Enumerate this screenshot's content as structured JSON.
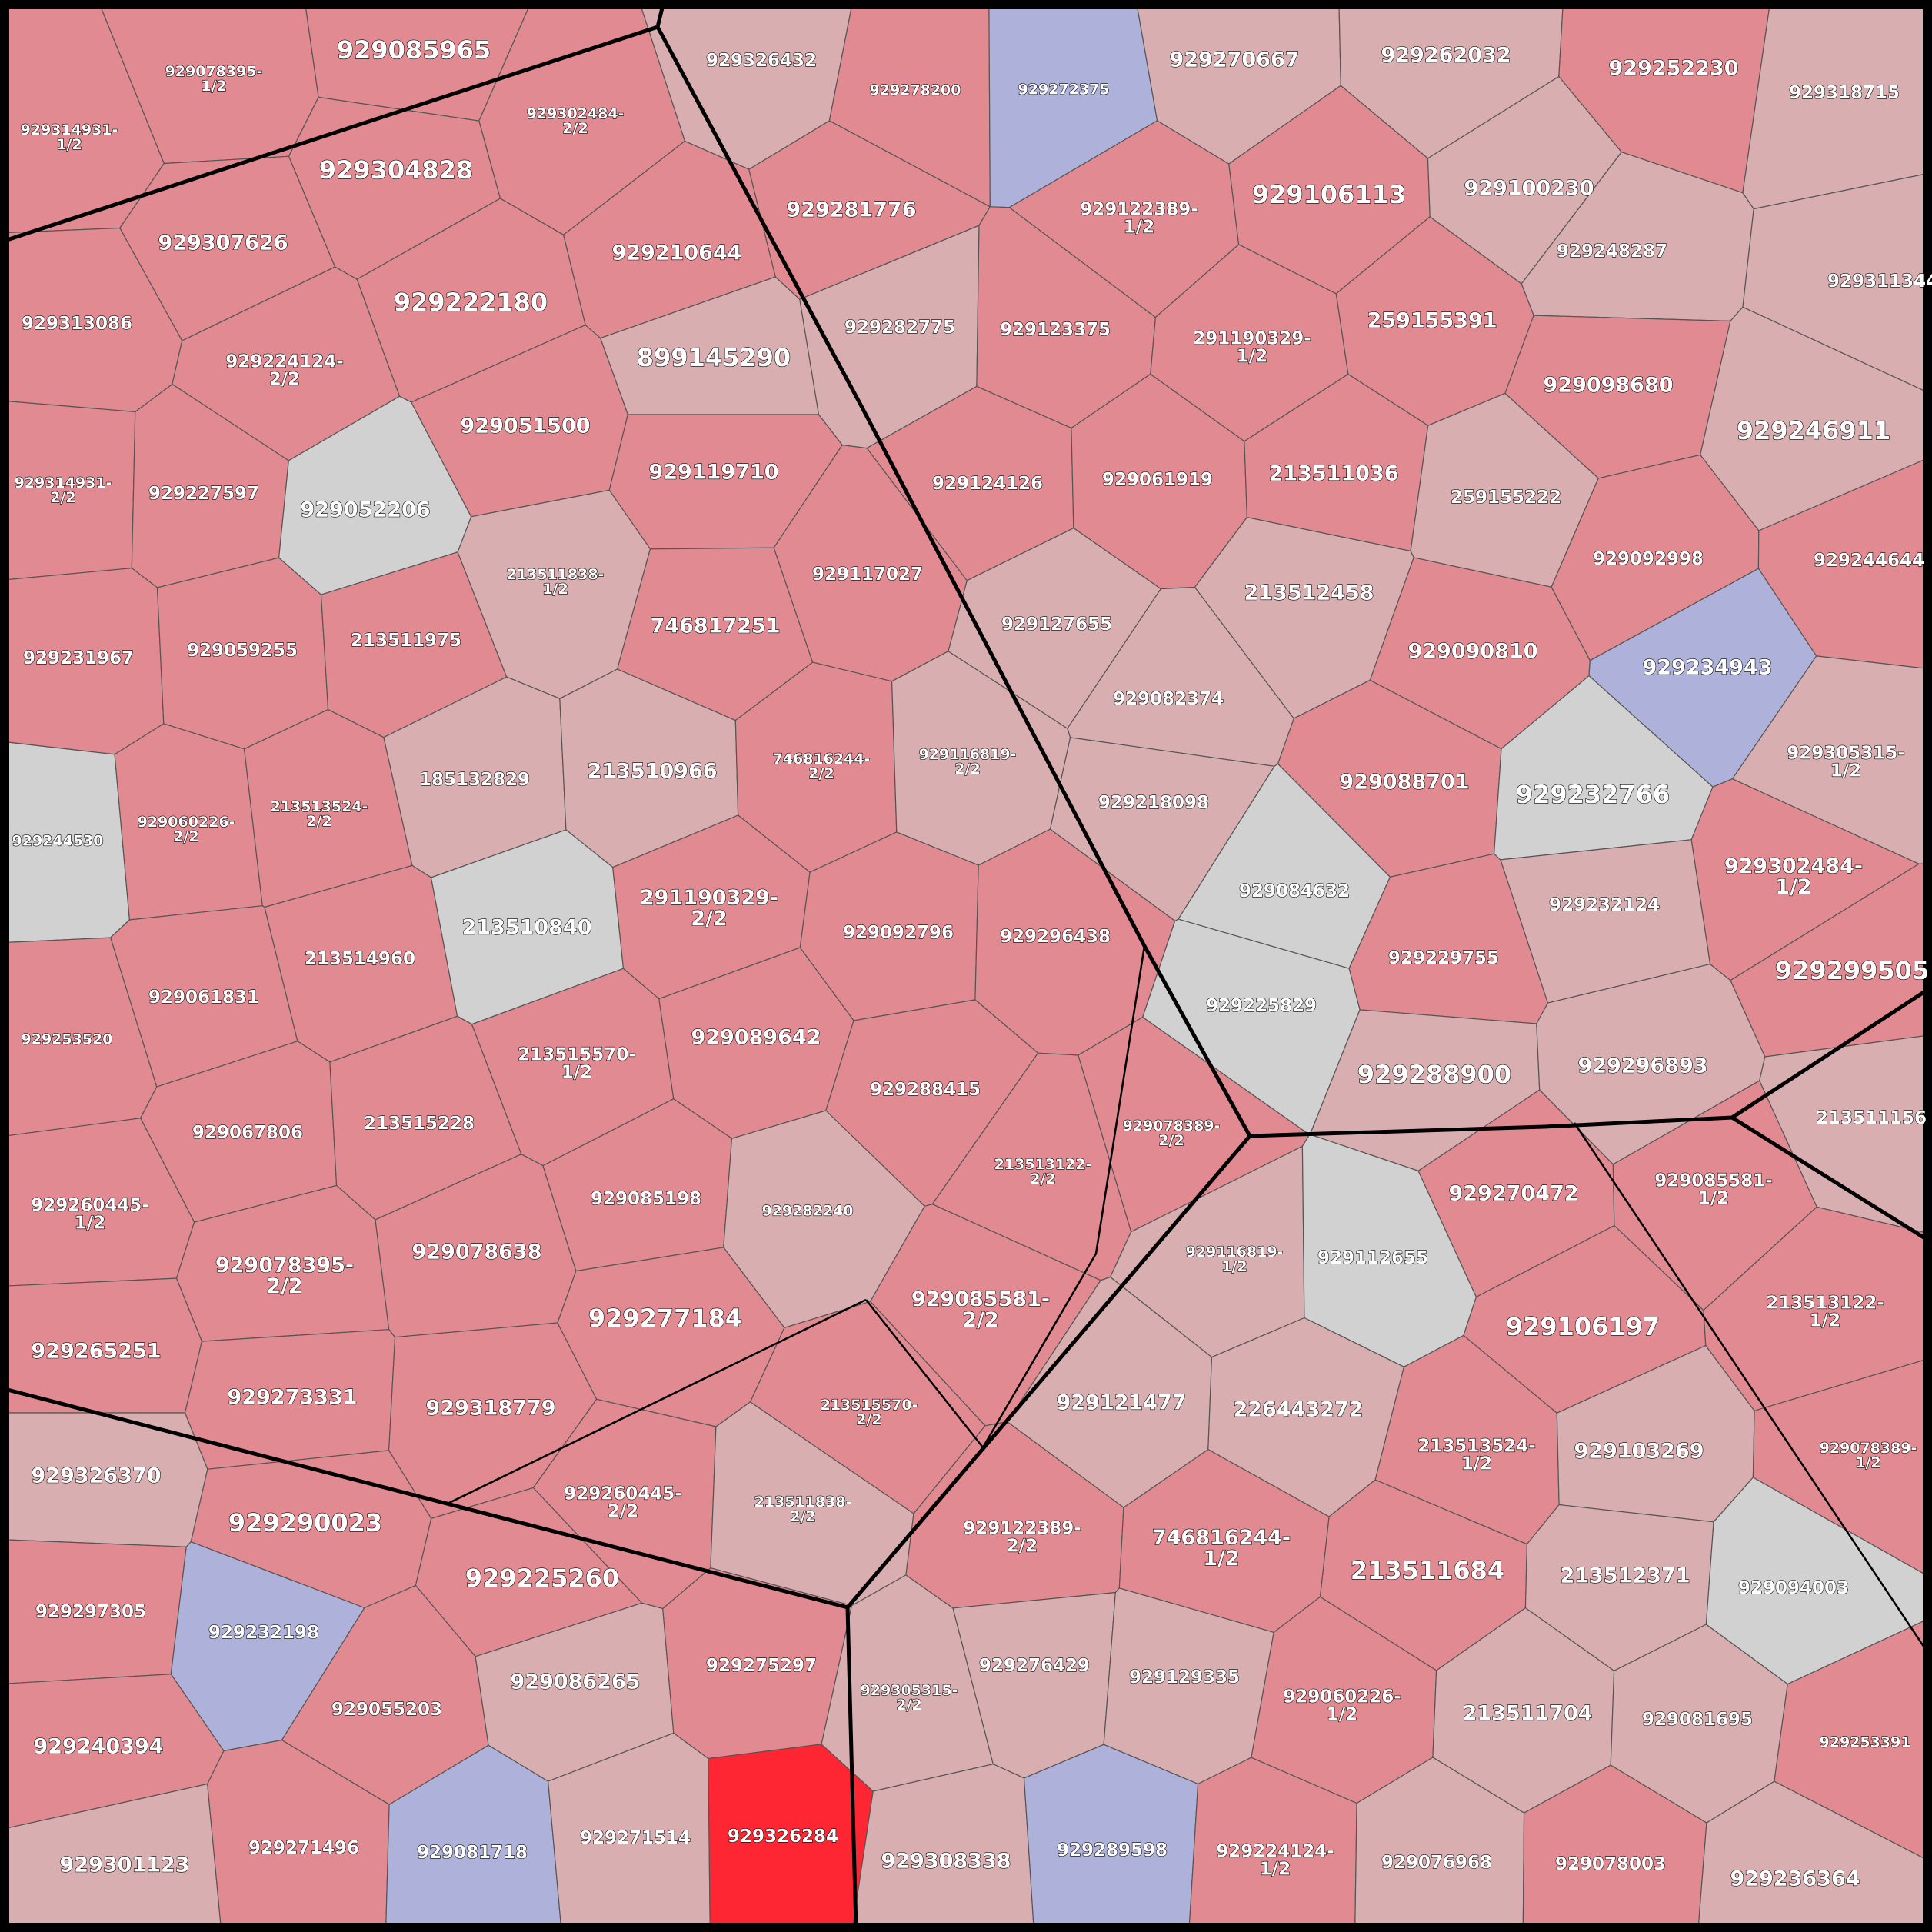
{
  "map": {
    "colors": {
      "strong": "#e28a91",
      "light": "#d9aeb1",
      "gray": "#d1d1d1",
      "blue": "#aeb1d9",
      "highlight": "#fe2633"
    },
    "regions": [
      {
        "id": "r1",
        "label": [
          "929314931-",
          "1/2"
        ],
        "shade": "strong"
      },
      {
        "id": "r2",
        "label": [
          "929078395-",
          "1/2"
        ],
        "shade": "strong"
      },
      {
        "id": "r3",
        "label": [
          "929085965"
        ],
        "shade": "strong"
      },
      {
        "id": "r4",
        "label": [
          "929302484-",
          "2/2"
        ],
        "shade": "strong"
      },
      {
        "id": "r5",
        "label": [
          "929304828"
        ],
        "shade": "strong"
      },
      {
        "id": "r6",
        "label": [
          "929307626"
        ],
        "shade": "strong"
      },
      {
        "id": "r7",
        "label": [
          "929210644"
        ],
        "shade": "strong"
      },
      {
        "id": "r8",
        "label": [
          "929313086"
        ],
        "shade": "strong"
      },
      {
        "id": "r9",
        "label": [
          "929222180"
        ],
        "shade": "strong"
      },
      {
        "id": "r10",
        "label": [
          "929224124-",
          "2/2"
        ],
        "shade": "strong"
      },
      {
        "id": "r11",
        "label": [
          "899145290"
        ],
        "shade": "light"
      },
      {
        "id": "r12",
        "label": [
          "929314931-",
          "2/2"
        ],
        "shade": "strong"
      },
      {
        "id": "r13",
        "label": [
          "929227597"
        ],
        "shade": "strong"
      },
      {
        "id": "r14",
        "label": [
          "929052206"
        ],
        "shade": "gray"
      },
      {
        "id": "r15",
        "label": [
          "929051500"
        ],
        "shade": "strong"
      },
      {
        "id": "r16",
        "label": [
          "929119710"
        ],
        "shade": "strong"
      },
      {
        "id": "r17",
        "label": [
          "929231967"
        ],
        "shade": "strong"
      },
      {
        "id": "r18",
        "label": [
          "929059255"
        ],
        "shade": "strong"
      },
      {
        "id": "r19",
        "label": [
          "213511975"
        ],
        "shade": "strong"
      },
      {
        "id": "r20",
        "label": [
          "213511838-",
          "1/2"
        ],
        "shade": "light"
      },
      {
        "id": "r21",
        "label": [
          "746817251"
        ],
        "shade": "strong"
      },
      {
        "id": "r22",
        "label": [
          "929117027"
        ],
        "shade": "strong"
      },
      {
        "id": "r23",
        "label": [
          "929244530"
        ],
        "shade": "gray"
      },
      {
        "id": "r24",
        "label": [
          "929060226-",
          "2/2"
        ],
        "shade": "strong"
      },
      {
        "id": "r25",
        "label": [
          "213513524-",
          "2/2"
        ],
        "shade": "strong"
      },
      {
        "id": "r26",
        "label": [
          "185132829"
        ],
        "shade": "light"
      },
      {
        "id": "r27",
        "label": [
          "213510966"
        ],
        "shade": "light"
      },
      {
        "id": "r28",
        "label": [
          "746816244-",
          "2/2"
        ],
        "shade": "strong"
      },
      {
        "id": "r29",
        "label": [
          "929116819-",
          "2/2"
        ],
        "shade": "light"
      },
      {
        "id": "r30",
        "label": [
          "929061831"
        ],
        "shade": "strong"
      },
      {
        "id": "r31",
        "label": [
          "213514960"
        ],
        "shade": "strong"
      },
      {
        "id": "r32",
        "label": [
          "213510840"
        ],
        "shade": "gray"
      },
      {
        "id": "r33",
        "label": [
          "291190329-",
          "2/2"
        ],
        "shade": "strong"
      },
      {
        "id": "r34",
        "label": [
          "929092796"
        ],
        "shade": "strong"
      },
      {
        "id": "r35",
        "label": [
          "929296438"
        ],
        "shade": "strong"
      },
      {
        "id": "r36",
        "label": [
          "929253520"
        ],
        "shade": "strong"
      },
      {
        "id": "r37",
        "label": [
          "929067806"
        ],
        "shade": "strong"
      },
      {
        "id": "r38",
        "label": [
          "213515228"
        ],
        "shade": "strong"
      },
      {
        "id": "r39",
        "label": [
          "213515570-",
          "1/2"
        ],
        "shade": "strong"
      },
      {
        "id": "r40",
        "label": [
          "929089642"
        ],
        "shade": "strong"
      },
      {
        "id": "r41",
        "label": [
          "929288415"
        ],
        "shade": "strong"
      },
      {
        "id": "r42",
        "label": [
          "929260445-",
          "1/2"
        ],
        "shade": "strong"
      },
      {
        "id": "r43",
        "label": [
          "929078395-",
          "2/2"
        ],
        "shade": "strong"
      },
      {
        "id": "r44",
        "label": [
          "929078638"
        ],
        "shade": "strong"
      },
      {
        "id": "r45",
        "label": [
          "929085198"
        ],
        "shade": "strong"
      },
      {
        "id": "r46",
        "label": [
          "929282240"
        ],
        "shade": "light"
      },
      {
        "id": "r47",
        "label": [
          "929265251"
        ],
        "shade": "strong"
      },
      {
        "id": "r48",
        "label": [
          "929273331"
        ],
        "shade": "strong"
      },
      {
        "id": "r49",
        "label": [
          "929318779"
        ],
        "shade": "strong"
      },
      {
        "id": "r50",
        "label": [
          "929277184"
        ],
        "shade": "strong"
      },
      {
        "id": "r51",
        "label": [
          "929326432"
        ],
        "shade": "light"
      },
      {
        "id": "r52",
        "label": [
          "929278200"
        ],
        "shade": "strong"
      },
      {
        "id": "r53",
        "label": [
          "929272375"
        ],
        "shade": "blue"
      },
      {
        "id": "r54",
        "label": [
          "929281776"
        ],
        "shade": "strong"
      },
      {
        "id": "r55",
        "label": [
          "929282775"
        ],
        "shade": "light"
      },
      {
        "id": "r56",
        "label": [
          "929123375"
        ],
        "shade": "strong"
      },
      {
        "id": "r57",
        "label": [
          "929122389-",
          "1/2"
        ],
        "shade": "strong"
      },
      {
        "id": "r58",
        "label": [
          "929124126"
        ],
        "shade": "strong"
      },
      {
        "id": "r59",
        "label": [
          "929061919"
        ],
        "shade": "strong"
      },
      {
        "id": "r60",
        "label": [
          "929127655"
        ],
        "shade": "light"
      },
      {
        "id": "r61",
        "label": [
          "929082374"
        ],
        "shade": "light"
      },
      {
        "id": "r62",
        "label": [
          "929218098"
        ],
        "shade": "light"
      },
      {
        "id": "r63",
        "label": [
          "929270667"
        ],
        "shade": "light"
      },
      {
        "id": "r64",
        "label": [
          "929262032"
        ],
        "shade": "light"
      },
      {
        "id": "r65",
        "label": [
          "929252230"
        ],
        "shade": "strong"
      },
      {
        "id": "r66",
        "label": [
          "929318715"
        ],
        "shade": "light"
      },
      {
        "id": "r67",
        "label": [
          "929106113"
        ],
        "shade": "strong"
      },
      {
        "id": "r68",
        "label": [
          "929100230"
        ],
        "shade": "light"
      },
      {
        "id": "r69",
        "label": [
          "929248287"
        ],
        "shade": "light"
      },
      {
        "id": "r70",
        "label": [
          "929311344"
        ],
        "shade": "light"
      },
      {
        "id": "r71",
        "label": [
          "291190329-",
          "1/2"
        ],
        "shade": "strong"
      },
      {
        "id": "r72",
        "label": [
          "259155391"
        ],
        "shade": "strong"
      },
      {
        "id": "r73",
        "label": [
          "929098680"
        ],
        "shade": "strong"
      },
      {
        "id": "r74",
        "label": [
          "929246911"
        ],
        "shade": "light"
      },
      {
        "id": "r75",
        "label": [
          "213511036"
        ],
        "shade": "strong"
      },
      {
        "id": "r76",
        "label": [
          "259155222"
        ],
        "shade": "light"
      },
      {
        "id": "r77",
        "label": [
          "213512458"
        ],
        "shade": "light"
      },
      {
        "id": "r78",
        "label": [
          "929092998"
        ],
        "shade": "strong"
      },
      {
        "id": "r79",
        "label": [
          "929244644"
        ],
        "shade": "strong"
      },
      {
        "id": "r80",
        "label": [
          "929090810"
        ],
        "shade": "strong"
      },
      {
        "id": "r81",
        "label": [
          "929234943"
        ],
        "shade": "blue"
      },
      {
        "id": "r82",
        "label": [
          "929305315-",
          "1/2"
        ],
        "shade": "light"
      },
      {
        "id": "r83",
        "label": [
          "929088701"
        ],
        "shade": "strong"
      },
      {
        "id": "r84",
        "label": [
          "929232766"
        ],
        "shade": "gray"
      },
      {
        "id": "r85",
        "label": [
          "929084632"
        ],
        "shade": "gray"
      },
      {
        "id": "r86",
        "label": [
          "929302484-",
          "1/2"
        ],
        "shade": "strong"
      },
      {
        "id": "r87",
        "label": [
          "929232124"
        ],
        "shade": "light"
      },
      {
        "id": "r88",
        "label": [
          "929229755"
        ],
        "shade": "strong"
      },
      {
        "id": "r89",
        "label": [
          "929225829"
        ],
        "shade": "gray"
      },
      {
        "id": "r90",
        "label": [
          "929299505"
        ],
        "shade": "strong"
      },
      {
        "id": "r91",
        "label": [
          "929288900"
        ],
        "shade": "light"
      },
      {
        "id": "r92",
        "label": [
          "929296893"
        ],
        "shade": "light"
      },
      {
        "id": "r93",
        "label": [
          "213511156"
        ],
        "shade": "light"
      },
      {
        "id": "r94",
        "label": [
          "929078389-",
          "2/2"
        ],
        "shade": "strong"
      },
      {
        "id": "r95",
        "label": [
          "213513122-",
          "2/2"
        ],
        "shade": "strong"
      },
      {
        "id": "r96",
        "label": [
          "929085581-",
          "2/2"
        ],
        "shade": "strong"
      },
      {
        "id": "r97",
        "label": [
          "213515570-",
          "2/2"
        ],
        "shade": "strong"
      },
      {
        "id": "r98",
        "label": [
          "929260445-",
          "2/2"
        ],
        "shade": "strong"
      },
      {
        "id": "r99",
        "label": [
          "213511838-",
          "2/2"
        ],
        "shade": "light"
      },
      {
        "id": "r100",
        "label": [
          "929116819-",
          "1/2"
        ],
        "shade": "light"
      },
      {
        "id": "r101",
        "label": [
          "929112655"
        ],
        "shade": "gray"
      },
      {
        "id": "r102",
        "label": [
          "929270472"
        ],
        "shade": "strong"
      },
      {
        "id": "r103",
        "label": [
          "929085581-",
          "1/2"
        ],
        "shade": "strong"
      },
      {
        "id": "r104",
        "label": [
          "213513122-",
          "1/2"
        ],
        "shade": "strong"
      },
      {
        "id": "r105",
        "label": [
          "929106197"
        ],
        "shade": "strong"
      },
      {
        "id": "r106",
        "label": [
          "929121477"
        ],
        "shade": "light"
      },
      {
        "id": "r107",
        "label": [
          "226443272"
        ],
        "shade": "light"
      },
      {
        "id": "r108",
        "label": [
          "213513524-",
          "1/2"
        ],
        "shade": "strong"
      },
      {
        "id": "r109",
        "label": [
          "929103269"
        ],
        "shade": "light"
      },
      {
        "id": "r110",
        "label": [
          "929078389-",
          "1/2"
        ],
        "shade": "strong"
      },
      {
        "id": "r111",
        "label": [
          "929122389-",
          "2/2"
        ],
        "shade": "strong"
      },
      {
        "id": "r112",
        "label": [
          "746816244-",
          "1/2"
        ],
        "shade": "strong"
      },
      {
        "id": "r113",
        "label": [
          "213511684"
        ],
        "shade": "strong"
      },
      {
        "id": "r114",
        "label": [
          "213512371"
        ],
        "shade": "light"
      },
      {
        "id": "r115",
        "label": [
          "929094003"
        ],
        "shade": "gray"
      },
      {
        "id": "r116",
        "label": [
          "929326370"
        ],
        "shade": "light"
      },
      {
        "id": "r117",
        "label": [
          "929290023"
        ],
        "shade": "strong"
      },
      {
        "id": "r118",
        "label": [
          "929225260"
        ],
        "shade": "strong"
      },
      {
        "id": "r119",
        "label": [
          "929297305"
        ],
        "shade": "strong"
      },
      {
        "id": "r120",
        "label": [
          "929232198"
        ],
        "shade": "blue"
      },
      {
        "id": "r121",
        "label": [
          "929055203"
        ],
        "shade": "strong"
      },
      {
        "id": "r122",
        "label": [
          "929086265"
        ],
        "shade": "light"
      },
      {
        "id": "r123",
        "label": [
          "929275297"
        ],
        "shade": "strong"
      },
      {
        "id": "r124",
        "label": [
          "929240394"
        ],
        "shade": "strong"
      },
      {
        "id": "r125",
        "label": [
          "929301123"
        ],
        "shade": "light"
      },
      {
        "id": "r126",
        "label": [
          "929271496"
        ],
        "shade": "strong"
      },
      {
        "id": "r127",
        "label": [
          "929081718"
        ],
        "shade": "blue"
      },
      {
        "id": "r128",
        "label": [
          "929271514"
        ],
        "shade": "light"
      },
      {
        "id": "r129",
        "label": [
          "929326284"
        ],
        "shade": "highlight"
      },
      {
        "id": "r130",
        "label": [
          "929305315-",
          "2/2"
        ],
        "shade": "light"
      },
      {
        "id": "r131",
        "label": [
          "929276429"
        ],
        "shade": "light"
      },
      {
        "id": "r132",
        "label": [
          "929129335"
        ],
        "shade": "light"
      },
      {
        "id": "r133",
        "label": [
          "929060226-",
          "1/2"
        ],
        "shade": "strong"
      },
      {
        "id": "r134",
        "label": [
          "213511704"
        ],
        "shade": "light"
      },
      {
        "id": "r135",
        "label": [
          "929081695"
        ],
        "shade": "light"
      },
      {
        "id": "r136",
        "label": [
          "929253391"
        ],
        "shade": "strong"
      },
      {
        "id": "r137",
        "label": [
          "929308338"
        ],
        "shade": "light"
      },
      {
        "id": "r138",
        "label": [
          "929289598"
        ],
        "shade": "blue"
      },
      {
        "id": "r139",
        "label": [
          "929224124-",
          "1/2"
        ],
        "shade": "strong"
      },
      {
        "id": "r140",
        "label": [
          "929076968"
        ],
        "shade": "light"
      },
      {
        "id": "r141",
        "label": [
          "929078003"
        ],
        "shade": "strong"
      },
      {
        "id": "r142",
        "label": [
          "929236364"
        ],
        "shade": "light"
      }
    ]
  }
}
